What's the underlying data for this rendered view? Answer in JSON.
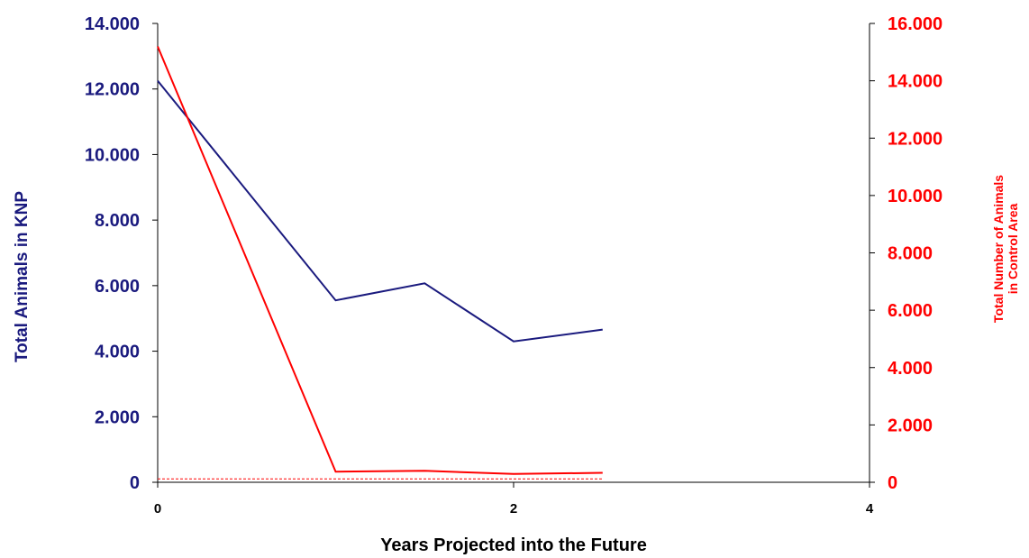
{
  "chart_data": {
    "type": "line",
    "title": "",
    "xlabel": "Years Projected into the Future",
    "ylabel_left": "Total Animals in KNP",
    "ylabel_right_lines": [
      "Total Number of Animals",
      "in Control Area"
    ],
    "xlim": [
      0,
      4
    ],
    "x_ticks": [
      "0",
      "2",
      "4"
    ],
    "ylim_left": [
      0,
      14000
    ],
    "y_ticks_left": [
      "0",
      "2.000",
      "4.000",
      "6.000",
      "8.000",
      "10.000",
      "12.000",
      "14.000"
    ],
    "ylim_right": [
      0,
      16000
    ],
    "y_ticks_right": [
      "0",
      "2.000",
      "4.000",
      "6.000",
      "8.000",
      "10.000",
      "12.000",
      "14.000",
      "16.000"
    ],
    "grid": false,
    "legend": "none",
    "colors": {
      "left": "#1a1a7e",
      "right": "#ff0000"
    },
    "series": [
      {
        "axis": "left",
        "color": "#1a1a7e",
        "x": [
          0,
          1,
          1.5,
          2,
          2.5
        ],
        "values": [
          12250,
          5550,
          6070,
          4300,
          4660
        ]
      },
      {
        "axis": "right",
        "color": "#ff0000",
        "x": [
          0,
          1,
          1.5,
          2,
          2.5
        ],
        "values": [
          15200,
          370,
          400,
          290,
          330
        ]
      },
      {
        "axis": "right",
        "color": "#ff0000",
        "dashed": true,
        "x": [
          0,
          2.5
        ],
        "values": [
          120,
          120
        ]
      }
    ]
  }
}
